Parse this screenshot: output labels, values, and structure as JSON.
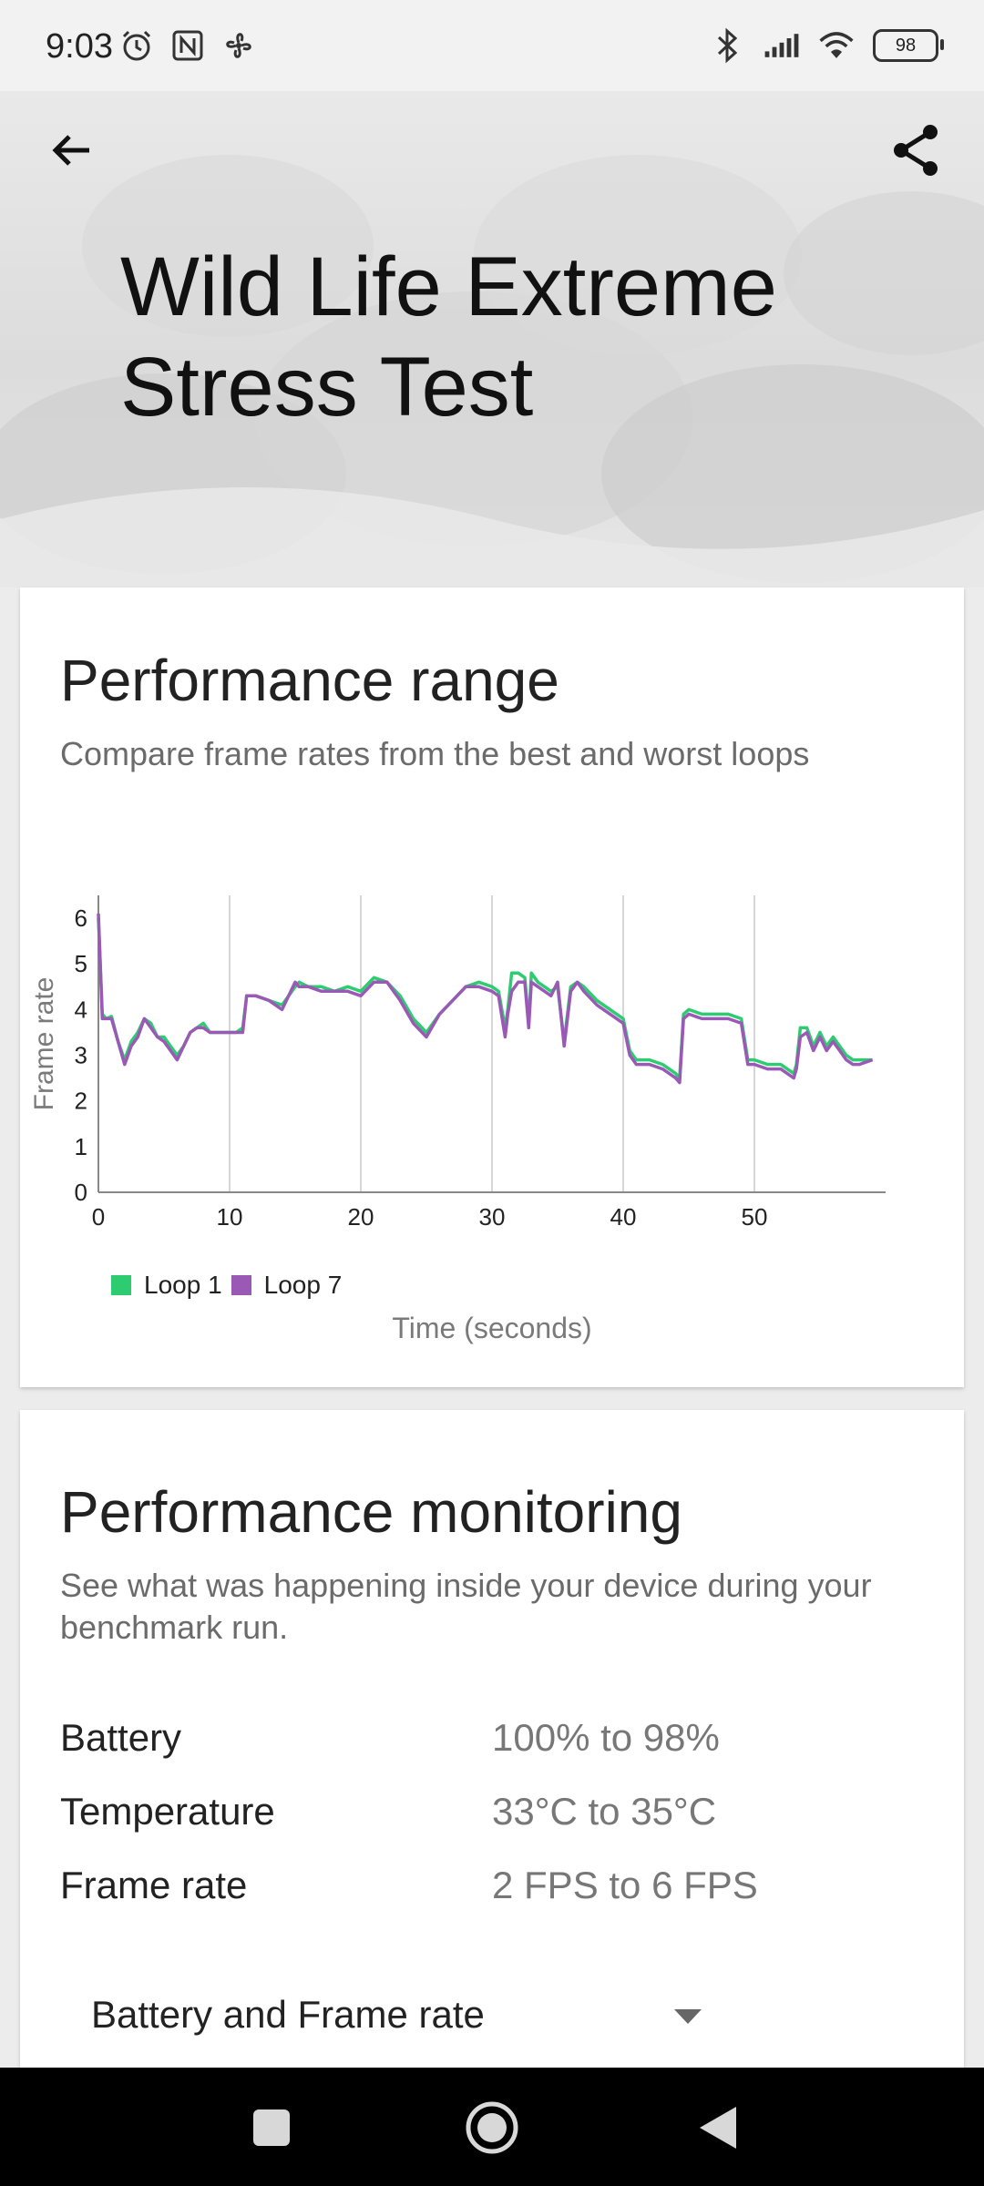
{
  "status_bar": {
    "time": "9:03",
    "battery": "98",
    "icons_left": [
      "alarm-icon",
      "nfc-icon",
      "fan-icon"
    ],
    "icons_right": [
      "bluetooth-icon",
      "signal-icon",
      "wifi-icon",
      "battery-icon"
    ]
  },
  "header": {
    "title": "Wild Life Extreme Stress Test",
    "back_icon": "arrow-left-icon",
    "share_icon": "share-icon"
  },
  "performance_range": {
    "title": "Performance range",
    "subtitle": "Compare frame rates from the best and worst loops",
    "legend": [
      {
        "name": "Loop 1",
        "color": "#2ecc71"
      },
      {
        "name": "Loop 7",
        "color": "#9b59b6"
      }
    ],
    "xlabel": "Time (seconds)"
  },
  "chart_data": {
    "type": "line",
    "xlabel": "Time (seconds)",
    "ylabel": "Frame rate",
    "xlim": [
      0,
      60
    ],
    "ylim": [
      0,
      6.5
    ],
    "xticks": [
      "0",
      "10",
      "20",
      "30",
      "40",
      "50"
    ],
    "yticks": [
      "0",
      "1",
      "2",
      "3",
      "4",
      "5",
      "6"
    ],
    "grid": "vertical",
    "legend_position": "bottom-left",
    "series": [
      {
        "name": "Loop 1",
        "color": "#2ecc71",
        "x": [
          0,
          0.3,
          0.6,
          1.0,
          1.5,
          2.0,
          2.5,
          3.0,
          3.5,
          4.0,
          4.5,
          5.0,
          5.5,
          6.0,
          6.5,
          7.0,
          7.5,
          8.0,
          8.5,
          9.0,
          9.5,
          10.0,
          10.5,
          11.0,
          11.3,
          11.6,
          12.0,
          13.0,
          14.0,
          15.0,
          15.3,
          16.0,
          17.0,
          18.0,
          19.0,
          20.0,
          21.0,
          22.0,
          23.0,
          24.0,
          25.0,
          26.0,
          27.0,
          28.0,
          29.0,
          30.0,
          30.5,
          31.0,
          31.2,
          31.5,
          32.0,
          32.5,
          32.8,
          33.0,
          33.5,
          34.0,
          34.5,
          35.0,
          35.5,
          36.0,
          36.5,
          37.0,
          38.0,
          39.0,
          40.0,
          40.5,
          41.0,
          42.0,
          43.0,
          44.0,
          44.3,
          44.6,
          45.0,
          46.0,
          47.0,
          48.0,
          49.0,
          49.5,
          50.0,
          51.0,
          52.0,
          53.0,
          53.2,
          53.5,
          54.0,
          54.5,
          55.0,
          55.5,
          56.0,
          56.5,
          57.0,
          57.5,
          58.0,
          59.0
        ],
        "values": [
          6.0,
          3.9,
          3.8,
          3.85,
          3.3,
          2.9,
          3.3,
          3.5,
          3.8,
          3.7,
          3.4,
          3.4,
          3.2,
          3.0,
          3.2,
          3.5,
          3.6,
          3.7,
          3.5,
          3.5,
          3.5,
          3.5,
          3.5,
          3.6,
          4.3,
          4.3,
          4.3,
          4.2,
          4.1,
          4.5,
          4.6,
          4.5,
          4.5,
          4.4,
          4.5,
          4.4,
          4.7,
          4.6,
          4.3,
          3.8,
          3.5,
          3.9,
          4.2,
          4.5,
          4.6,
          4.5,
          4.4,
          3.6,
          4.0,
          4.8,
          4.8,
          4.7,
          3.7,
          4.8,
          4.6,
          4.5,
          4.4,
          4.5,
          3.3,
          4.5,
          4.6,
          4.5,
          4.2,
          4.0,
          3.8,
          3.1,
          2.9,
          2.9,
          2.8,
          2.6,
          2.5,
          3.9,
          4.0,
          3.9,
          3.9,
          3.9,
          3.8,
          2.9,
          2.9,
          2.8,
          2.8,
          2.6,
          2.8,
          3.6,
          3.6,
          3.2,
          3.5,
          3.2,
          3.4,
          3.2,
          3.0,
          2.9,
          2.9,
          2.9
        ],
        "note_line_fill": "none"
      },
      {
        "name": "Loop 7",
        "color": "#9b59b6",
        "x": [
          0,
          0.3,
          0.6,
          1.0,
          1.5,
          2.0,
          2.5,
          3.0,
          3.5,
          4.0,
          4.5,
          5.0,
          5.5,
          6.0,
          6.5,
          7.0,
          7.5,
          8.0,
          8.5,
          9.0,
          9.5,
          10.0,
          10.5,
          11.0,
          11.3,
          11.6,
          12.0,
          13.0,
          14.0,
          15.0,
          15.3,
          16.0,
          17.0,
          18.0,
          19.0,
          20.0,
          21.0,
          22.0,
          23.0,
          24.0,
          25.0,
          26.0,
          27.0,
          28.0,
          29.0,
          30.0,
          30.5,
          31.0,
          31.2,
          31.5,
          32.0,
          32.5,
          32.8,
          33.0,
          33.5,
          34.0,
          34.5,
          35.0,
          35.5,
          36.0,
          36.5,
          37.0,
          38.0,
          39.0,
          40.0,
          40.5,
          41.0,
          42.0,
          43.0,
          44.0,
          44.3,
          44.6,
          45.0,
          46.0,
          47.0,
          48.0,
          49.0,
          49.5,
          50.0,
          51.0,
          52.0,
          53.0,
          53.2,
          53.5,
          54.0,
          54.5,
          55.0,
          55.5,
          56.0,
          56.5,
          57.0,
          57.5,
          58.0,
          59.0
        ],
        "values": [
          6.1,
          3.8,
          3.8,
          3.8,
          3.3,
          2.8,
          3.2,
          3.4,
          3.8,
          3.6,
          3.4,
          3.3,
          3.1,
          2.9,
          3.2,
          3.5,
          3.6,
          3.6,
          3.5,
          3.5,
          3.5,
          3.5,
          3.5,
          3.5,
          4.3,
          4.3,
          4.3,
          4.2,
          4.0,
          4.6,
          4.5,
          4.5,
          4.4,
          4.4,
          4.4,
          4.3,
          4.6,
          4.6,
          4.2,
          3.7,
          3.4,
          3.9,
          4.2,
          4.5,
          4.5,
          4.4,
          4.3,
          3.4,
          3.9,
          4.4,
          4.6,
          4.6,
          3.6,
          4.6,
          4.5,
          4.4,
          4.3,
          4.6,
          3.2,
          4.4,
          4.6,
          4.4,
          4.1,
          3.9,
          3.7,
          3.0,
          2.8,
          2.8,
          2.7,
          2.5,
          2.4,
          3.8,
          3.9,
          3.8,
          3.8,
          3.8,
          3.7,
          2.8,
          2.8,
          2.7,
          2.7,
          2.5,
          2.7,
          3.4,
          3.5,
          3.1,
          3.4,
          3.1,
          3.3,
          3.1,
          2.9,
          2.8,
          2.8,
          2.9
        ]
      }
    ]
  },
  "performance_monitoring": {
    "title": "Performance monitoring",
    "subtitle": "See what was happening inside your device during your benchmark run.",
    "rows": [
      {
        "label": "Battery",
        "value": "100% to 98%"
      },
      {
        "label": "Temperature",
        "value": "33°C to 35°C"
      },
      {
        "label": "Frame rate",
        "value": "2 FPS to 6 FPS"
      }
    ],
    "dropdown_value": "Battery and Frame rate"
  },
  "nav_bar": {
    "icons": [
      "recent-apps-icon",
      "home-icon",
      "back-icon"
    ]
  }
}
